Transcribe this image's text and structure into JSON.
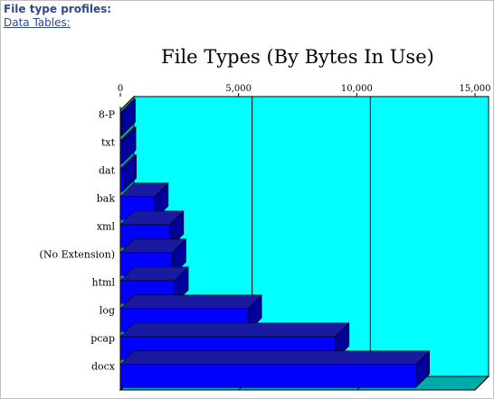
{
  "header": {
    "section_title": "File type profiles:",
    "data_tables_link": "Data Tables:"
  },
  "colors": {
    "plot_background": "#00ffff",
    "plot_side_wall": "#00aaaa",
    "bar_front": "#0000ff",
    "bar_top": "#1a1aa0",
    "bar_side": "#00009a"
  },
  "chart_data": {
    "type": "bar",
    "orientation": "horizontal",
    "three_d": true,
    "title": "File Types (By Bytes In Use)",
    "categories": [
      "8-P",
      "txt",
      "dat",
      "bak",
      "xml",
      "(No Extension)",
      "html",
      "log",
      "pcap",
      "docx"
    ],
    "values": [
      60,
      80,
      100,
      1450,
      2100,
      2200,
      2300,
      5400,
      9100,
      12500
    ],
    "xlim": [
      0,
      15000
    ],
    "xticks": [
      0,
      5000,
      10000,
      15000
    ],
    "xtick_labels": [
      "0",
      "5,000",
      "10,000",
      "15,000"
    ],
    "axis_position": "top",
    "grid": true
  }
}
